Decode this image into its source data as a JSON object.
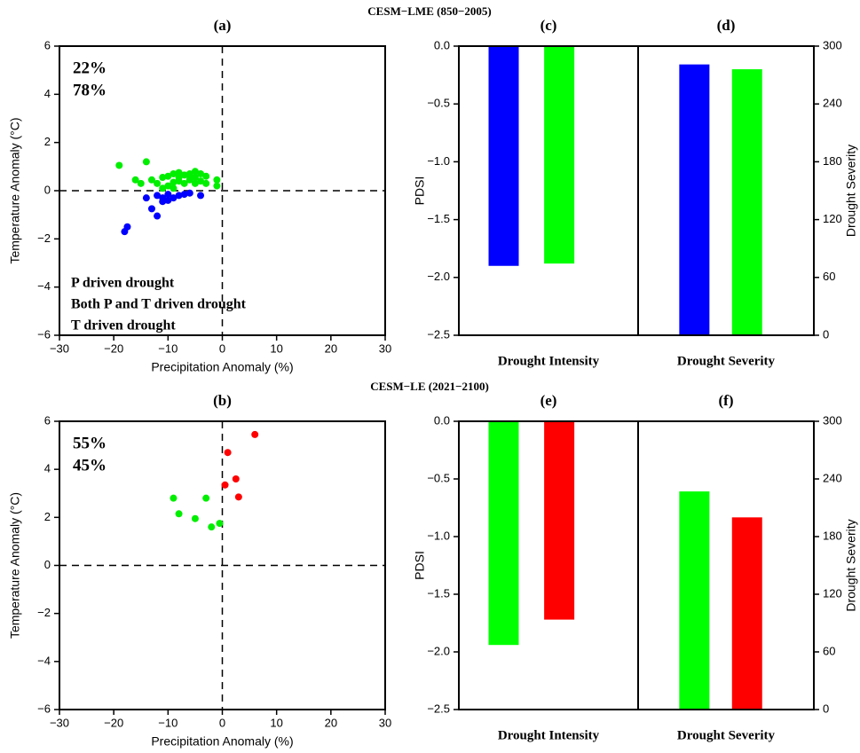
{
  "chart_data": [
    {
      "type": "scatter",
      "title": "(a)",
      "suptitle": "CESM−LME (850−2005)",
      "xlabel": "Precipitation Anomaly (%)",
      "ylabel": "Temperature Anomaly (°C)",
      "xlim": [
        -30,
        30
      ],
      "ylim": [
        -6,
        6
      ],
      "xticks": [
        {
          "value": -30,
          "label": "−30"
        },
        {
          "value": -20,
          "label": "−20"
        },
        {
          "value": -10,
          "label": "−10"
        },
        0,
        10,
        20,
        30
      ],
      "yticks": [
        {
          "value": -6,
          "label": "−6"
        },
        {
          "value": -4,
          "label": "−4"
        },
        {
          "value": -2,
          "label": "−2"
        },
        0,
        2,
        4,
        6
      ],
      "legend": "lower left",
      "series": [
        {
          "name": "P driven drought",
          "color": "#0000ff",
          "share": {
            "value": 22,
            "label": "22%"
          },
          "x": [
            -18,
            -17.5,
            -12,
            -13,
            -14,
            -11,
            -10,
            -9,
            -8,
            -7,
            -4,
            -12,
            -10,
            -6,
            -11
          ],
          "y": [
            -1.7,
            -1.5,
            -1.05,
            -0.75,
            -0.3,
            -0.45,
            -0.4,
            -0.3,
            -0.2,
            -0.15,
            -0.2,
            -0.2,
            -0.15,
            -0.1,
            -0.3
          ]
        },
        {
          "name": "Both P and T driven drought",
          "color": "#00ee00",
          "share": {
            "value": 78,
            "label": "78%"
          },
          "x": [
            -19,
            -14,
            -16,
            -15,
            -13,
            -11,
            -10,
            -9,
            -8,
            -7,
            -6,
            -5,
            -4,
            -3,
            -1,
            -1,
            -12,
            -10,
            -9,
            -8,
            -7,
            -6,
            -5,
            -4,
            -11,
            -3,
            -8,
            -6,
            -9,
            -5
          ],
          "y": [
            1.05,
            1.2,
            0.45,
            0.3,
            0.45,
            0.55,
            0.6,
            0.7,
            0.75,
            0.65,
            0.7,
            0.8,
            0.7,
            0.6,
            0.45,
            0.2,
            0.3,
            0.2,
            0.35,
            0.4,
            0.3,
            0.45,
            0.3,
            0.4,
            0.1,
            0.3,
            0.55,
            0.6,
            0.1,
            0.55
          ]
        },
        {
          "name": "T driven drought",
          "color": "#ff0000",
          "x": [],
          "y": []
        }
      ]
    },
    {
      "type": "bar",
      "title": "(c)",
      "xlabel": "Drought Intensity",
      "ylabel": "PDSI",
      "y_axis_side": "left",
      "ylim": [
        -2.5,
        0
      ],
      "yticks": [
        {
          "value": -2.5,
          "label": "−2.5"
        },
        {
          "value": -2,
          "label": "−2.0"
        },
        {
          "value": -1.5,
          "label": "−1.5"
        },
        {
          "value": -1,
          "label": "−1.0"
        },
        {
          "value": -0.5,
          "label": "−0.5"
        },
        {
          "value": 0,
          "label": "0.0"
        }
      ],
      "series": [
        {
          "color": "#0000ff",
          "values": [
            -1.9
          ]
        },
        {
          "color": "#00ff00",
          "values": [
            -1.88
          ]
        }
      ]
    },
    {
      "type": "bar",
      "title": "(d)",
      "xlabel": "Drought Severity",
      "ylabel": "Drought Severity",
      "y_axis_side": "right",
      "ylim": [
        0,
        300
      ],
      "yticks": [
        0,
        60,
        120,
        180,
        240,
        300
      ],
      "series": [
        {
          "color": "#0000ff",
          "values": [
            281
          ]
        },
        {
          "color": "#00ff00",
          "values": [
            276
          ]
        }
      ]
    },
    {
      "type": "scatter",
      "title": "(b)",
      "suptitle": "CESM−LE (2021−2100)",
      "xlabel": "Precipitation Anomaly (%)",
      "ylabel": "Temperature Anomaly (°C)",
      "xlim": [
        -30,
        30
      ],
      "ylim": [
        -6,
        6
      ],
      "xticks": [
        {
          "value": -30,
          "label": "−30"
        },
        {
          "value": -20,
          "label": "−20"
        },
        {
          "value": -10,
          "label": "−10"
        },
        0,
        10,
        20,
        30
      ],
      "yticks": [
        {
          "value": -6,
          "label": "−6"
        },
        {
          "value": -4,
          "label": "−4"
        },
        {
          "value": -2,
          "label": "−2"
        },
        0,
        2,
        4,
        6
      ],
      "series": [
        {
          "color": "#00ee00",
          "share": {
            "value": 55,
            "label": "55%"
          },
          "x": [
            -9,
            -8,
            -5,
            -3,
            -2,
            -0.5
          ],
          "y": [
            2.8,
            2.15,
            1.95,
            2.8,
            1.6,
            1.75
          ]
        },
        {
          "color": "#ff0000",
          "share": {
            "value": 45,
            "label": "45%"
          },
          "x": [
            0.5,
            1,
            2.5,
            3,
            6
          ],
          "y": [
            3.35,
            4.7,
            3.6,
            2.85,
            5.45
          ]
        }
      ]
    },
    {
      "type": "bar",
      "title": "(e)",
      "xlabel": "Drought Intensity",
      "ylabel": "PDSI",
      "y_axis_side": "left",
      "ylim": [
        -2.5,
        0
      ],
      "yticks": [
        {
          "value": -2.5,
          "label": "−2.5"
        },
        {
          "value": -2,
          "label": "−2.0"
        },
        {
          "value": -1.5,
          "label": "−1.5"
        },
        {
          "value": -1,
          "label": "−1.0"
        },
        {
          "value": -0.5,
          "label": "−0.5"
        },
        {
          "value": 0,
          "label": "0.0"
        }
      ],
      "series": [
        {
          "color": "#00ff00",
          "values": [
            -1.94
          ]
        },
        {
          "color": "#ff0000",
          "values": [
            -1.72
          ]
        }
      ]
    },
    {
      "type": "bar",
      "title": "(f)",
      "xlabel": "Drought Severity",
      "ylabel": "Drought Severity",
      "y_axis_side": "right",
      "ylim": [
        0,
        300
      ],
      "yticks": [
        0,
        60,
        120,
        180,
        240,
        300
      ],
      "series": [
        {
          "color": "#00ff00",
          "values": [
            227
          ]
        },
        {
          "color": "#ff0000",
          "values": [
            200
          ]
        }
      ]
    }
  ]
}
